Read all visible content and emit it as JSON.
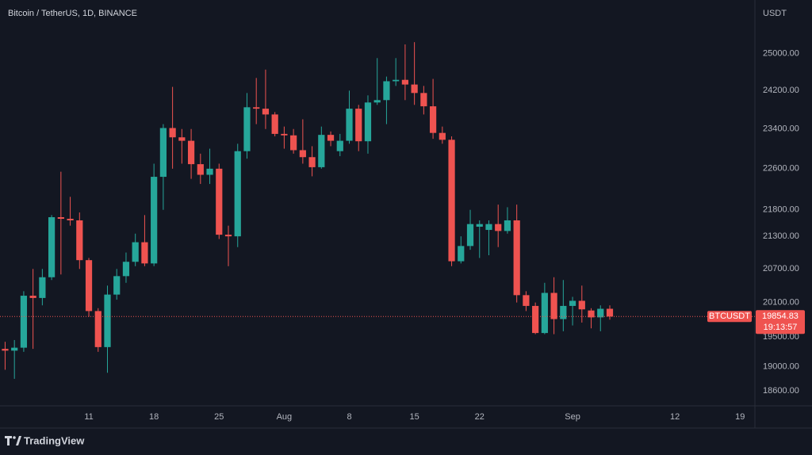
{
  "chart_data": {
    "type": "candlestick",
    "title": "Bitcoin / TetherUS, 1D, BINANCE",
    "y_axis_label": "USDT",
    "symbol": "BTCUSDT",
    "last_price": 19854.83,
    "countdown": "19:13:57",
    "brand": "TradingView",
    "up_color": "#26a69a",
    "down_color": "#ef5350",
    "log_scale": true,
    "grid": false,
    "x": [
      2,
      3,
      4,
      5,
      6,
      7,
      8,
      9,
      10,
      11,
      12,
      13,
      14,
      15,
      16,
      17,
      18,
      19,
      20,
      21,
      22,
      23,
      24,
      25,
      26,
      27,
      28,
      29,
      30,
      31,
      32,
      33,
      34,
      35,
      36,
      37,
      38,
      39,
      40,
      41,
      42,
      43,
      44,
      45,
      46,
      47,
      48,
      49,
      50,
      51,
      52,
      53,
      54,
      55,
      56,
      57,
      58,
      59,
      60,
      61,
      62,
      63,
      64,
      65,
      66,
      67
    ],
    "open": [
      19300,
      19270,
      19320,
      20220,
      20180,
      20550,
      21660,
      21630,
      21600,
      20860,
      19950,
      19330,
      20240,
      20570,
      20830,
      21190,
      20800,
      22440,
      23420,
      23230,
      23160,
      22690,
      22480,
      22600,
      21330,
      21300,
      22950,
      23850,
      23820,
      23700,
      23300,
      23270,
      22970,
      22830,
      22630,
      23280,
      22950,
      23160,
      23820,
      23150,
      23950,
      24000,
      24400,
      24430,
      24330,
      24150,
      23870,
      23320,
      23180,
      20840,
      21120,
      21480,
      21420,
      21530,
      21400,
      21600,
      20230,
      20040,
      19570,
      20270,
      19810,
      20040,
      20130,
      19960,
      19840,
      19990
    ],
    "high": [
      19420,
      19450,
      20300,
      20700,
      20700,
      21700,
      22540,
      22050,
      21750,
      20900,
      20000,
      20400,
      20700,
      21000,
      21350,
      21700,
      22700,
      23500,
      24280,
      23400,
      23400,
      22900,
      23000,
      22700,
      21500,
      23100,
      24150,
      24470,
      24650,
      23750,
      23450,
      23400,
      23600,
      23050,
      23450,
      23350,
      23300,
      24200,
      23900,
      24100,
      24900,
      24500,
      24900,
      25200,
      25250,
      24300,
      24450,
      23450,
      23250,
      21300,
      21800,
      21600,
      21600,
      21900,
      21850,
      21900,
      20300,
      20100,
      20450,
      20550,
      20500,
      20200,
      20400,
      20000,
      20050,
      20050
    ],
    "low": [
      18950,
      18800,
      19250,
      19300,
      20050,
      20500,
      20600,
      21500,
      20700,
      19850,
      19250,
      18900,
      20150,
      20450,
      20750,
      20750,
      20750,
      21800,
      22600,
      22700,
      22400,
      22300,
      22300,
      21250,
      20750,
      21100,
      22800,
      23500,
      23400,
      23250,
      23000,
      22900,
      22700,
      22450,
      22600,
      23050,
      22850,
      23100,
      22950,
      22900,
      23900,
      23500,
      24300,
      24000,
      23900,
      23700,
      23200,
      23100,
      20750,
      20800,
      21050,
      20900,
      20950,
      21100,
      21350,
      20100,
      19950,
      19550,
      19550,
      19550,
      19600,
      19700,
      19750,
      19650,
      19600,
      19800
    ],
    "close": [
      19270,
      19320,
      20220,
      20180,
      20550,
      21660,
      21630,
      21600,
      20860,
      19950,
      19330,
      20240,
      20570,
      20830,
      21190,
      20800,
      22440,
      23420,
      23230,
      23160,
      22690,
      22480,
      22600,
      21330,
      21300,
      22950,
      23850,
      23820,
      23700,
      23300,
      23270,
      22970,
      22830,
      22630,
      23280,
      23160,
      23160,
      23820,
      23150,
      23950,
      24000,
      24400,
      24430,
      24330,
      24150,
      23870,
      23320,
      23180,
      20840,
      21120,
      21530,
      21530,
      21530,
      21400,
      21600,
      20230,
      20040,
      19570,
      20270,
      19810,
      20040,
      20130,
      19980,
      19840,
      19990,
      19854.83
    ],
    "xlim": [
      1.45,
      82.6
    ],
    "xticks": [
      {
        "value": 11,
        "label": "11"
      },
      {
        "value": 18,
        "label": "18"
      },
      {
        "value": 25,
        "label": "25"
      },
      {
        "value": 32,
        "label": "Aug"
      },
      {
        "value": 39,
        "label": "8"
      },
      {
        "value": 46,
        "label": "15"
      },
      {
        "value": 53,
        "label": "22"
      },
      {
        "value": 63,
        "label": "Sep"
      },
      {
        "value": 74,
        "label": "12"
      },
      {
        "value": 81,
        "label": "19"
      }
    ],
    "ylim": [
      18360,
      26200
    ],
    "yticks": [
      {
        "value": 25000,
        "label": "25000.00"
      },
      {
        "value": 24200,
        "label": "24200.00"
      },
      {
        "value": 23400,
        "label": "23400.00"
      },
      {
        "value": 22600,
        "label": "22600.00"
      },
      {
        "value": 21800,
        "label": "21800.00"
      },
      {
        "value": 21300,
        "label": "21300.00"
      },
      {
        "value": 20700,
        "label": "20700.00"
      },
      {
        "value": 20100,
        "label": "20100.00"
      },
      {
        "value": 19500,
        "label": "19500.00"
      },
      {
        "value": 19000,
        "label": "19000.00"
      },
      {
        "value": 18600,
        "label": "18600.00"
      }
    ]
  }
}
